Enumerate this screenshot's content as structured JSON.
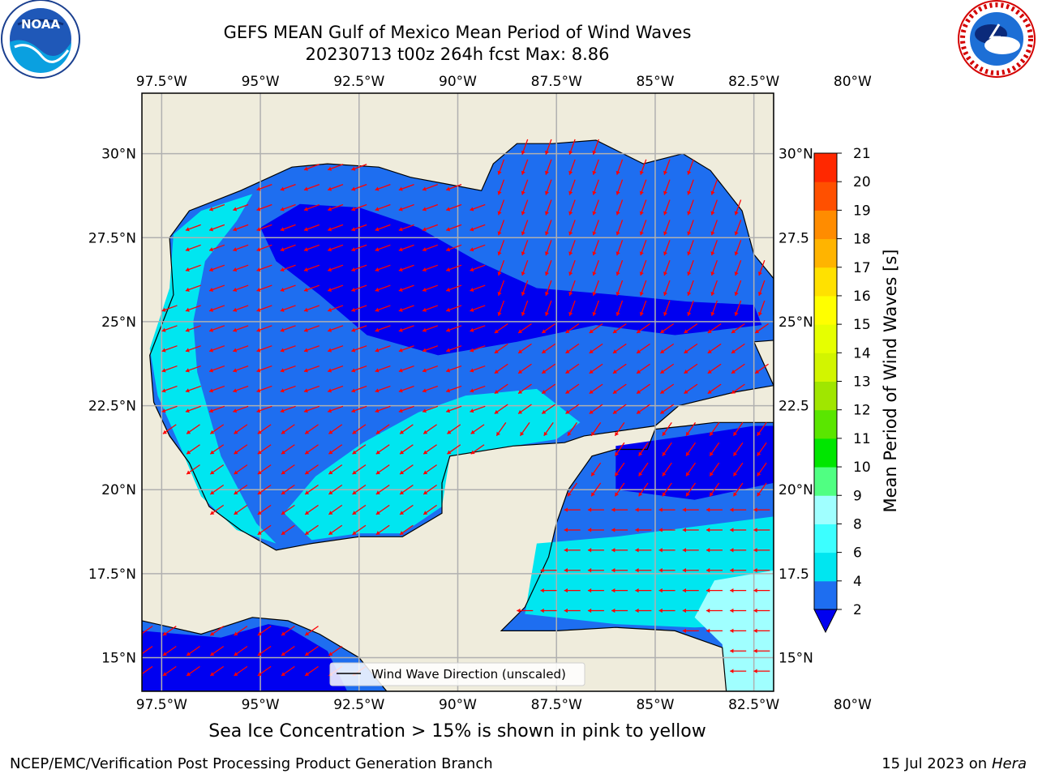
{
  "header": {
    "title_line1": "GEFS MEAN Gulf of Mexico Mean Period of Wind Waves",
    "title_line2": "20230713 t00z 264h fcst   Max: 8.86"
  },
  "logos": {
    "left": "NOAA",
    "left_ring_text": "NATIONAL OCEANIC AND ATMOSPHERIC ADMINISTRATION · U.S. DEPARTMENT OF COMMERCE",
    "right_ring_text": "NATIONAL WEATHER SERVICE"
  },
  "footer": {
    "note": "Sea Ice Concentration > 15% is shown in pink to yellow",
    "credit_left": "NCEP/EMC/Verification Post Processing Product Generation Branch",
    "credit_date": "15 Jul 2023 on",
    "credit_host": "Hera"
  },
  "chart_data": {
    "type": "heatmap",
    "title": "GEFS MEAN Gulf of Mexico Mean Period of Wind Waves",
    "subtitle": "20230713 t00z 264h fcst   Max: 8.86",
    "max_value": 8.86,
    "lon_range": [
      -98,
      -82
    ],
    "lat_range": [
      14,
      31.8
    ],
    "lon_ticks": [
      -97.5,
      -95,
      -92.5,
      -90,
      -87.5,
      -85,
      -82.5,
      -80
    ],
    "lon_tick_labels": [
      "97.5°W",
      "95°W",
      "92.5°W",
      "90°W",
      "87.5°W",
      "85°W",
      "82.5°W",
      "80°W"
    ],
    "lat_ticks": [
      15,
      17.5,
      20,
      22.5,
      25,
      27.5,
      30
    ],
    "lat_tick_labels_left": [
      "15°N",
      "17.5°N",
      "20°N",
      "22.5°N",
      "25°N",
      "27.5°N",
      "30°N"
    ],
    "lat_tick_labels_right": [
      "15°N",
      "17.5",
      "20°N",
      "22.5",
      "25°N",
      "27.5",
      "30°N"
    ],
    "grid": true,
    "legend": {
      "label": "Wind Wave Direction (unscaled)",
      "placement": "bottom-right"
    },
    "colorbar": {
      "label": "Mean Period of Wind Waves [s]",
      "levels": [
        2,
        4,
        6,
        8,
        9,
        10,
        11,
        12,
        13,
        14,
        15,
        16,
        17,
        18,
        19,
        20,
        21
      ],
      "colors": [
        "#1e6ef0",
        "#00e6f0",
        "#3cffff",
        "#a0ffff",
        "#50ff82",
        "#00e600",
        "#5ae600",
        "#a0e600",
        "#d2f500",
        "#e6ff00",
        "#ffff00",
        "#ffe100",
        "#ffb400",
        "#ff8c00",
        "#ff5000",
        "#ff2800",
        "#ff0000"
      ],
      "extend_color": "#0000f0",
      "extend": "min"
    },
    "colors": {
      "land": "#efecdc",
      "coast": "#000000",
      "grid": "#b0b0b0",
      "arrow": "#ff0000",
      "band_below_2": "#0000f0",
      "band_2_4": "#1e6ef0",
      "band_4_6": "#00e6f0",
      "band_6_8": "#3cffff",
      "band_8_9": "#a0ffff"
    }
  }
}
